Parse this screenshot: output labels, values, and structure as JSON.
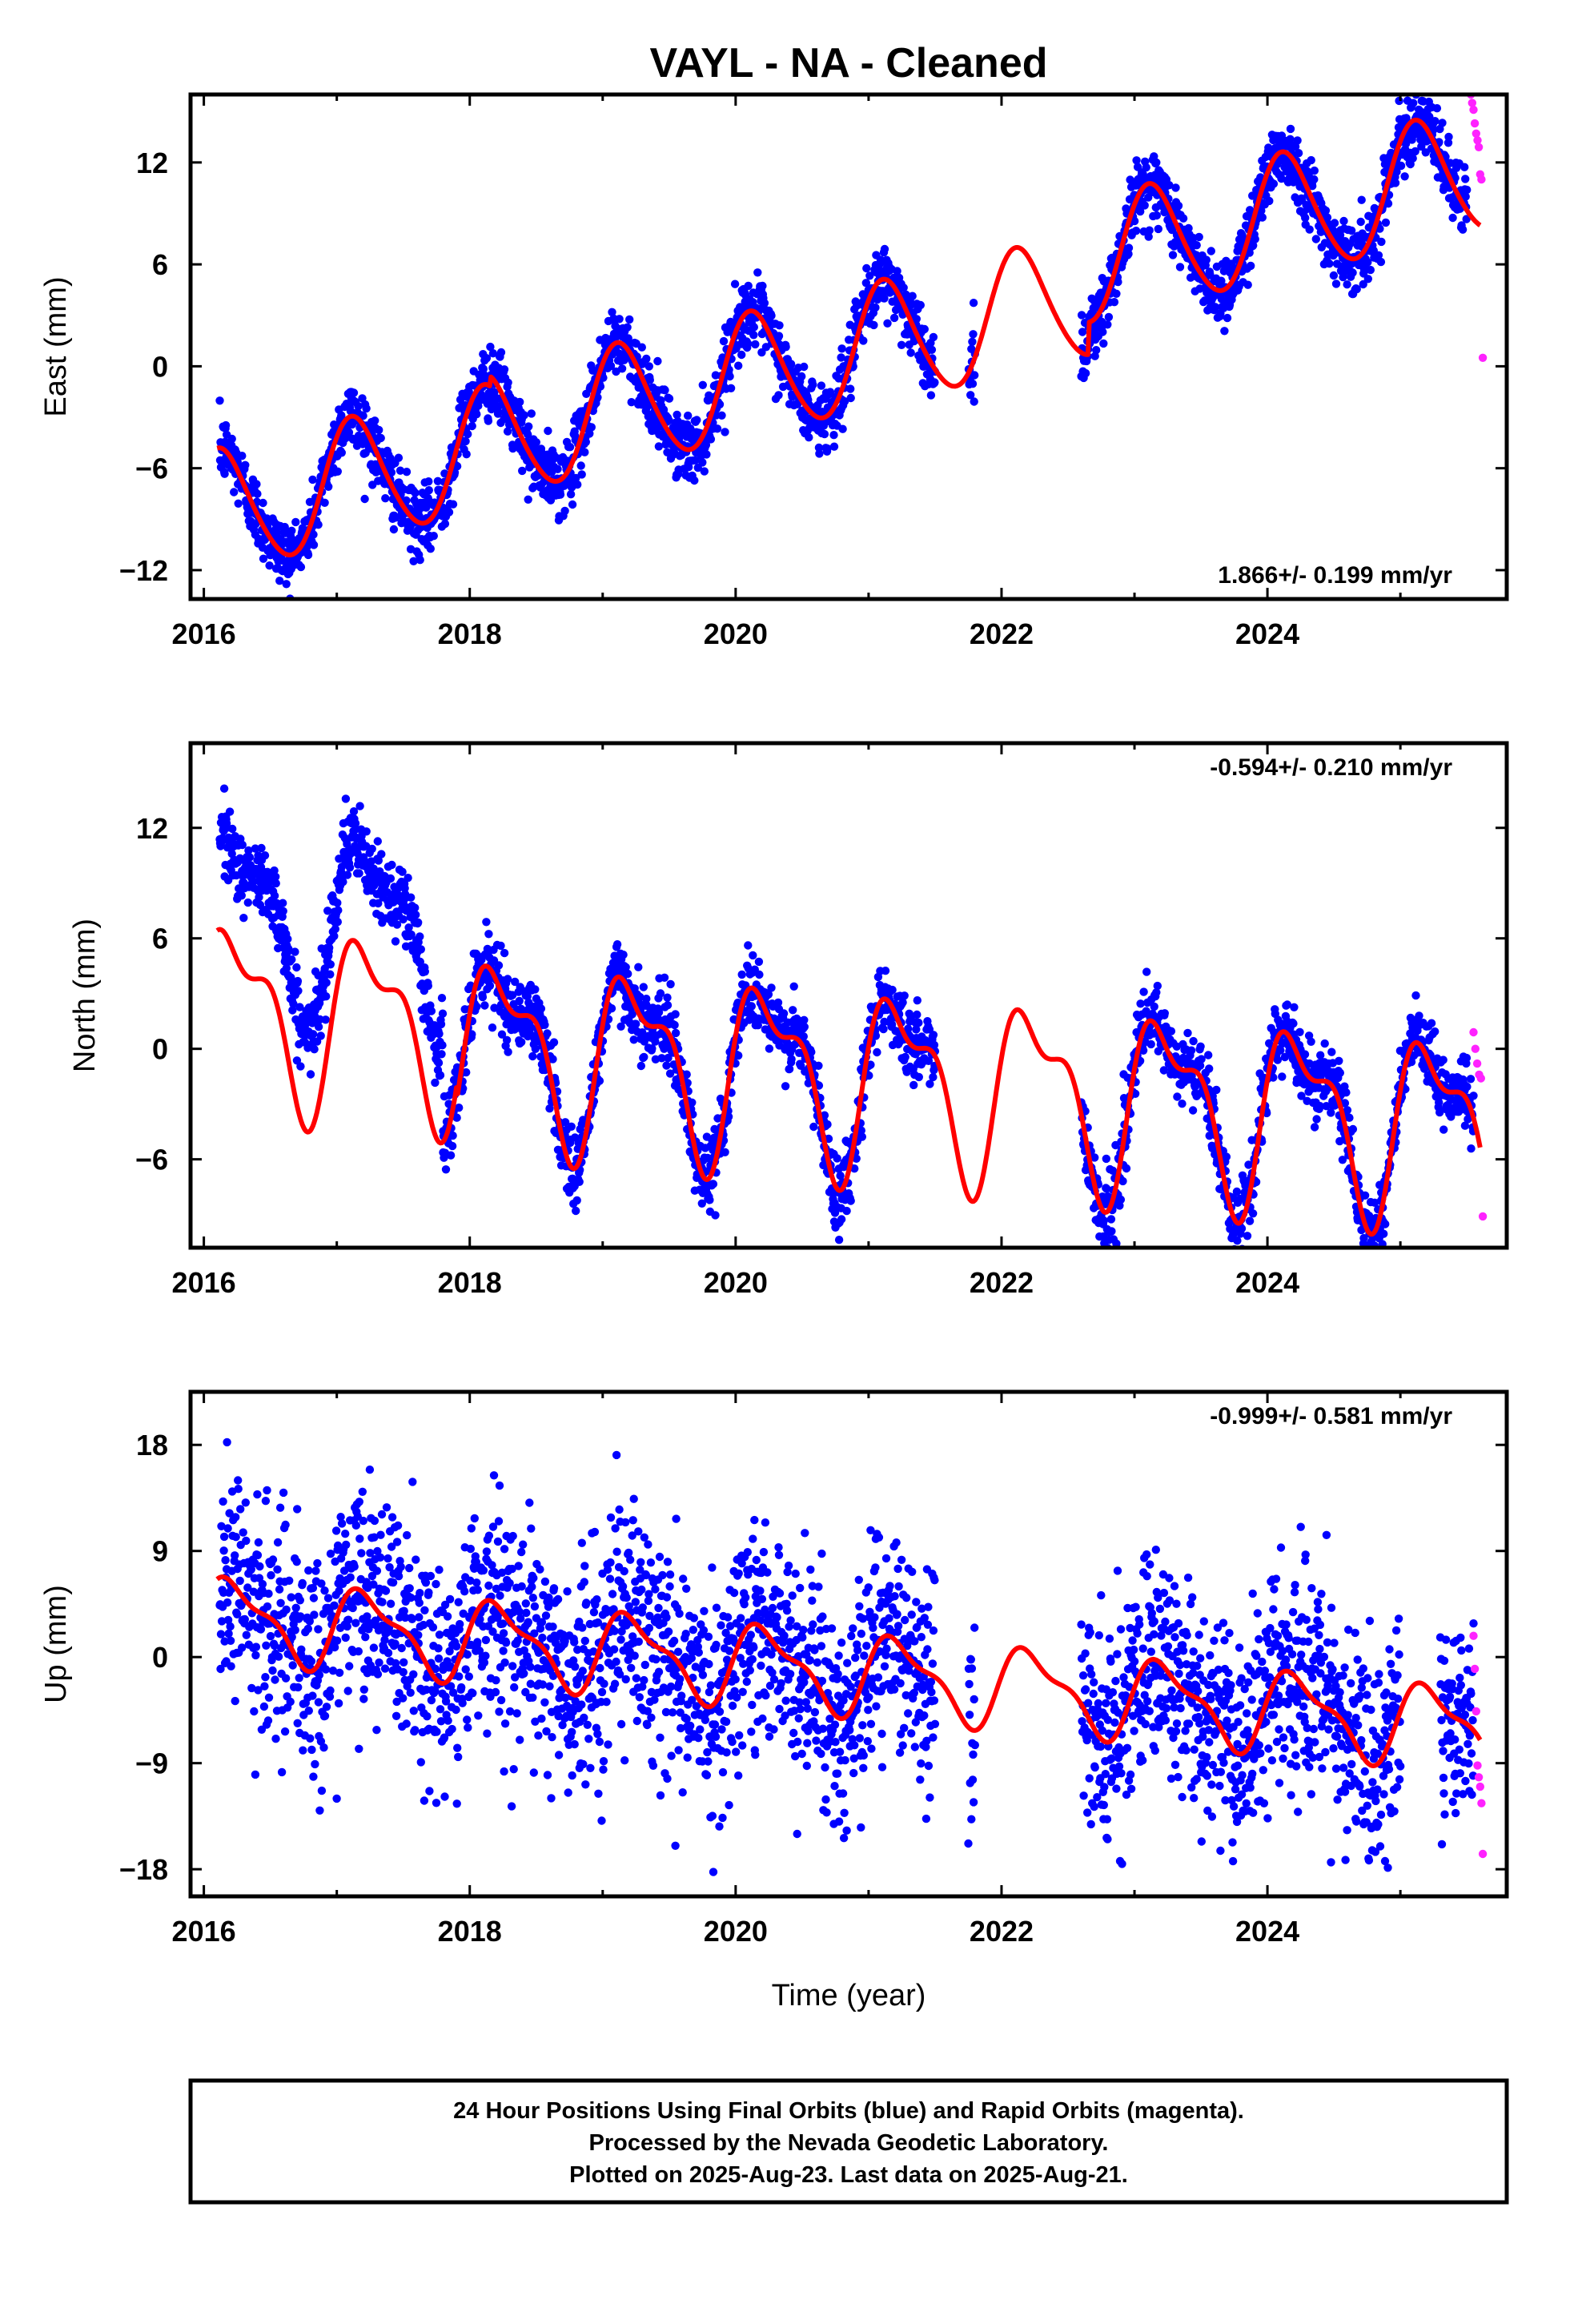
{
  "title": "VAYL  - NA - Cleaned",
  "xlabel": "Time (year)",
  "colors": {
    "final": "#0000ff",
    "rapid": "#ff22ff",
    "model": "#ff0000",
    "frame": "#000000"
  },
  "footer": {
    "line1": "24 Hour Positions Using Final Orbits (blue) and Rapid Orbits (magenta).",
    "line2": "Processed by the Nevada Geodetic Laboratory.",
    "line3": "Plotted on 2025-Aug-23. Last data on 2025-Aug-21."
  },
  "chart_data": [
    {
      "type": "scatter",
      "panel": "east",
      "ylabel": "East (mm)",
      "rate": "1.866+/- 0.199 mm/yr",
      "xlim": [
        2015.9,
        2025.8
      ],
      "ylim": [
        -13.7,
        16.0
      ],
      "xticks": [
        2016,
        2018,
        2020,
        2022,
        2024
      ],
      "yticks": [
        -12,
        -6,
        0,
        6,
        12
      ],
      "legend": "bottom-right",
      "series": [
        {
          "role": "final",
          "segments": [
            [
              2016.12,
              2018.1
            ],
            [
              2018.1,
              2021.5
            ],
            [
              2021.75,
              2021.8
            ],
            [
              2022.6,
              2025.5
            ]
          ],
          "model_offset": 0.0,
          "spread": 1.0
        },
        {
          "role": "rapid",
          "x_range": [
            2025.53,
            2025.62
          ],
          "approx_y": [
            16.0,
            15.5,
            15.1,
            14.3,
            13.7,
            13.3,
            12.9,
            11.3,
            11.0,
            0.5
          ]
        }
      ],
      "model": {
        "base": -1.38,
        "rate": 1.866,
        "t0": 2020.0,
        "harmonics": [
          [
            2.5,
            2.6
          ],
          [
            0.3,
            0.2
          ]
        ],
        "offsets": [
          [
            2018.15,
            0.6
          ],
          [
            2022.65,
            1.9
          ]
        ]
      }
    },
    {
      "type": "scatter",
      "panel": "north",
      "ylabel": "North (mm)",
      "rate": "-0.594+/- 0.210 mm/yr",
      "xlim": [
        2015.9,
        2025.8
      ],
      "ylim": [
        -10.8,
        16.6
      ],
      "xticks": [
        2016,
        2018,
        2020,
        2022,
        2024
      ],
      "yticks": [
        -6,
        0,
        6,
        12
      ],
      "legend": "top-right",
      "series": [
        {
          "role": "final",
          "segments": [
            [
              2016.12,
              2017.8
            ],
            [
              2017.8,
              2021.5
            ],
            [
              2022.6,
              2025.55
            ]
          ],
          "model_offset": 0.0,
          "spread": 1.0,
          "early_offset": [
            2017.8,
            5.3
          ]
        },
        {
          "role": "rapid",
          "x_range": [
            2025.55,
            2025.62
          ],
          "approx_y": [
            0.9,
            0.0,
            -0.8,
            -1.4,
            -1.6,
            -9.1
          ]
        }
      ],
      "model": {
        "base": -0.2,
        "rate": -0.594,
        "t0": 2020.0,
        "harmonics": [
          [
            0.1,
            4.4
          ],
          [
            1.6,
            1.2
          ]
        ],
        "offsets": [
          [
            2017.9,
            -0.8
          ]
        ]
      }
    },
    {
      "type": "scatter",
      "panel": "up",
      "ylabel": "Up (mm)",
      "rate": "-0.999+/- 0.581 mm/yr",
      "xlim": [
        2015.9,
        2025.8
      ],
      "ylim": [
        -20.3,
        22.5
      ],
      "xticks": [
        2016,
        2018,
        2020,
        2022,
        2024
      ],
      "yticks": [
        -18,
        -9,
        0,
        9,
        18
      ],
      "legend": "top-right",
      "series": [
        {
          "role": "final",
          "segments": [
            [
              2016.12,
              2021.5
            ],
            [
              2021.75,
              2021.8
            ],
            [
              2022.6,
              2025.0
            ],
            [
              2025.3,
              2025.55
            ]
          ],
          "model_offset": 0.0,
          "spread": 4.5
        },
        {
          "role": "rapid",
          "x_range": [
            2025.55,
            2025.62
          ],
          "approx_y": [
            1.8,
            -1.0,
            -4.6,
            -9.2,
            -10.2,
            -11.0,
            -12.4,
            -16.7
          ]
        }
      ],
      "model": {
        "base": -0.5,
        "rate": -0.999,
        "t0": 2020.0,
        "harmonics": [
          [
            0.3,
            3.1
          ],
          [
            0.6,
            1.0
          ]
        ],
        "offsets": []
      }
    }
  ]
}
